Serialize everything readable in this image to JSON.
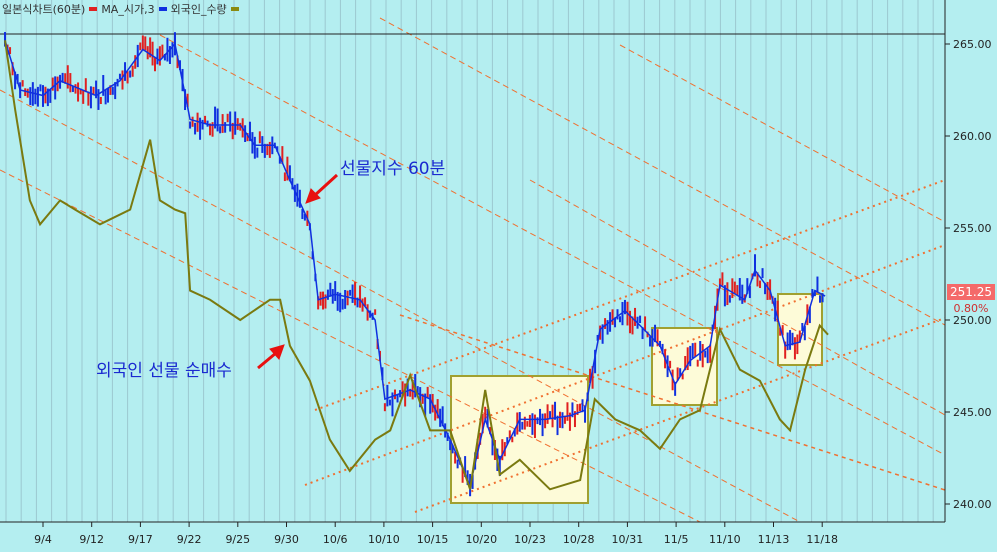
{
  "legend": {
    "title": "일본식차트(60분)",
    "items": [
      {
        "label": "MA_시가,3",
        "color": "#e02020"
      },
      {
        "label": "외국인_수량",
        "color": "#1030e0"
      },
      {
        "label": "",
        "color": "#8a8a10"
      }
    ]
  },
  "annotations": {
    "futures": "선물지수 60분",
    "foreign": "외국인 선물 순매수"
  },
  "last_price": {
    "value": "251.25",
    "change": "0.80%"
  },
  "colors": {
    "background": "#b4eef0",
    "price_up": "#e02020",
    "price_down": "#1030e0",
    "foreign": "#7a7a10",
    "trendline": "#f07030",
    "box_fill": "#fdfbd8",
    "box_border": "#a0a030"
  },
  "chart_data": {
    "type": "line",
    "title": "",
    "xlabel": "",
    "ylabel": "",
    "x_tick_labels": [
      "9/4",
      "9/12",
      "9/17",
      "9/22",
      "9/25",
      "9/30",
      "10/6",
      "10/10",
      "10/15",
      "10/20",
      "10/23",
      "10/28",
      "10/31",
      "11/5",
      "11/10",
      "11/13",
      "11/18"
    ],
    "y_ticks": [
      240.0,
      245.0,
      250.0,
      255.0,
      260.0,
      265.0
    ],
    "y_tick_labels": [
      "240.00",
      "245.00",
      "250.00",
      "255.00",
      "260.00",
      "265.00"
    ],
    "ylim": [
      239.5,
      266
    ],
    "grid": "vertical",
    "series": [
      {
        "name": "MA_시가,3",
        "role": "price",
        "x": [
          -0.78,
          -0.47,
          0,
          0.35,
          1.09,
          1.58,
          2.05,
          2.4,
          2.71,
          3.02,
          3.43,
          4.05,
          4.35,
          4.76,
          5.07,
          5.48,
          5.65,
          6.0,
          6.51,
          6.82,
          7.02,
          7.54,
          7.95,
          8.36,
          8.77,
          9.08,
          9.38,
          9.79,
          10.31,
          10.82,
          11.13,
          11.44,
          11.95,
          12.26,
          12.67,
          12.98,
          13.29,
          13.7,
          13.9,
          14.41,
          14.62,
          14.93,
          15.24,
          15.54,
          15.85,
          16.06
        ],
        "values": [
          265.2,
          262.5,
          262.2,
          263,
          262.2,
          263,
          264.7,
          264.1,
          265,
          260.9,
          260.6,
          260.6,
          259.5,
          259.5,
          257.6,
          255.2,
          251.1,
          251.4,
          251.1,
          250,
          245.7,
          246.2,
          245.7,
          243.5,
          241,
          244.6,
          242.4,
          244.6,
          244.6,
          244.8,
          245.1,
          249.5,
          250.5,
          249.7,
          248.6,
          246.5,
          247.8,
          248.6,
          251.9,
          251.1,
          252.7,
          251.6,
          248.6,
          248.8,
          251.6,
          251.3
        ]
      },
      {
        "name": "외국인_수량",
        "role": "foreign",
        "x": [
          -0.78,
          -0.57,
          -0.27,
          -0.06,
          0.35,
          0.66,
          1.17,
          1.79,
          2.2,
          2.4,
          2.71,
          2.92,
          3.02,
          3.43,
          4.05,
          4.66,
          4.87,
          5.07,
          5.48,
          5.89,
          6.3,
          6.82,
          7.13,
          7.54,
          7.95,
          8.36,
          8.77,
          9.08,
          9.38,
          9.79,
          10.41,
          11.03,
          11.33,
          11.75,
          12.26,
          12.67,
          13.08,
          13.49,
          13.9,
          14.31,
          14.72,
          15.13,
          15.34,
          15.65,
          15.95,
          16.12
        ],
        "values": [
          265.2,
          261.4,
          256.5,
          255.2,
          256.5,
          256,
          255.2,
          256,
          259.8,
          256.5,
          256,
          255.8,
          251.6,
          251.1,
          250,
          251.1,
          251.1,
          248.6,
          246.7,
          243.5,
          241.8,
          243.5,
          244,
          247,
          244,
          244,
          240.8,
          246.2,
          241.6,
          242.4,
          240.8,
          241.3,
          245.7,
          244.6,
          244,
          243,
          244.6,
          245.1,
          249.5,
          247.3,
          246.7,
          244.6,
          244,
          247.3,
          249.7,
          249.2
        ]
      }
    ],
    "reference_line": 265.5
  }
}
